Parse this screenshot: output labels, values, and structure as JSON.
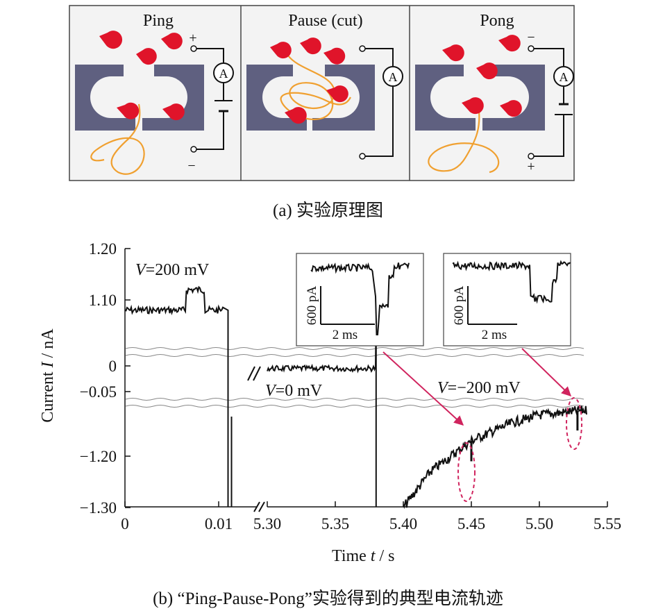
{
  "panel_a": {
    "panels": [
      {
        "title": "Ping",
        "top_sign": "+",
        "bottom_sign": "−"
      },
      {
        "title": "Pause (cut)",
        "top_sign": "",
        "bottom_sign": ""
      },
      {
        "title": "Pong",
        "top_sign": "−",
        "bottom_sign": "+"
      }
    ],
    "ammeter_label": "A",
    "caption": "(a) 实验原理图"
  },
  "panel_b": {
    "caption": "(b) “Ping-Pause-Pong”实验得到的典型电流轨迹",
    "annotations": {
      "v200": "=200 mV",
      "v0": "=0 mV",
      "vm200": "=−200 mV",
      "v_symbol": "V"
    },
    "inset_left": {
      "scale_y": "600 pA",
      "scale_x": "2 ms"
    },
    "inset_right": {
      "scale_y": "600 pA",
      "scale_x": "2 ms"
    },
    "colors": {
      "trace": "#111111",
      "arrow": "#d0245e",
      "pore": "#5f6080",
      "particle": "#e0142a",
      "strand": "#f0a030"
    }
  },
  "chart_data": {
    "type": "line",
    "xlabel": "Time t / s",
    "ylabel": "Current I / nA",
    "x_ticks": [
      "0",
      "0.01",
      "5.30",
      "5.35",
      "5.40",
      "5.45",
      "5.50",
      "5.55"
    ],
    "y_ticks": [
      "1.20",
      "1.10",
      "0",
      "−0.05",
      "−1.20",
      "−1.30"
    ],
    "axis_breaks": {
      "x": "0.01 to 5.30",
      "y": [
        "0.02 to 1.07",
        "−0.07 to −1.15"
      ]
    },
    "segments": [
      {
        "name": "",
        "x": [
          0,
          0.006,
          0.0065,
          0.0085,
          0.009,
          0.0105,
          0.011
        ],
        "y": [
          1.08,
          1.08,
          1.12,
          1.12,
          1.08,
          1.08,
          -1.3
        ]
      },
      {
        "name": "",
        "x": [
          5.3,
          5.38,
          5.381
        ],
        "y": [
          -0.005,
          -0.005,
          1.07
        ]
      },
      {
        "name": "",
        "x": [
          5.4,
          5.42,
          5.45,
          5.48,
          5.5,
          5.535
        ],
        "y": [
          -1.3,
          -1.23,
          -1.17,
          -1.135,
          -1.12,
          -1.11
        ]
      }
    ],
    "events": [
      {
        "x": 5.45,
        "y": -1.21
      },
      {
        "x": 5.528,
        "y": -1.15
      }
    ]
  }
}
